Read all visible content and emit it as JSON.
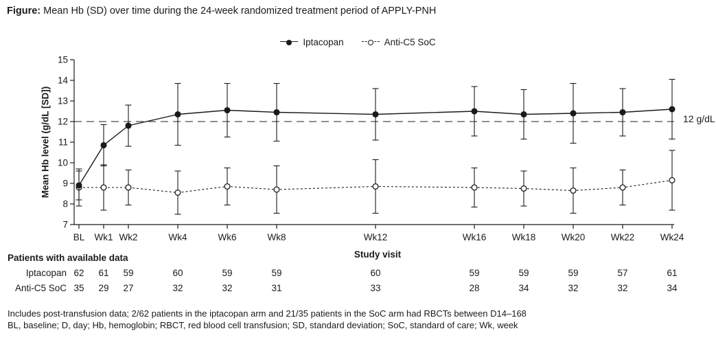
{
  "figure": {
    "title_label": "Figure:",
    "title_text": "Mean Hb (SD) over time during the 24-week randomized treatment period of APPLY-PNH"
  },
  "chart_data": {
    "type": "line",
    "x_categories": [
      "BL",
      "Wk1",
      "Wk2",
      "Wk4",
      "Wk6",
      "Wk8",
      "Wk12",
      "Wk16",
      "Wk18",
      "Wk20",
      "Wk22",
      "Wk24"
    ],
    "x_weeks": [
      0,
      1,
      2,
      4,
      6,
      8,
      12,
      16,
      18,
      20,
      22,
      24
    ],
    "xlabel": "Study visit",
    "ylabel": "Mean Hb level (g/dL [SD])",
    "ylim": [
      7,
      15
    ],
    "y_ticks": [
      7,
      8,
      9,
      10,
      11,
      12,
      13,
      14,
      15
    ],
    "grid": false,
    "legend_position": "top-center",
    "error_bars": "SD",
    "threshold": {
      "value": 12,
      "label": "12 g/dL"
    },
    "series": [
      {
        "name": "Iptacopan",
        "marker": "filled-circle",
        "line_style": "solid",
        "means": [
          8.9,
          10.85,
          11.8,
          12.35,
          12.55,
          12.45,
          12.35,
          12.5,
          12.35,
          12.4,
          12.45,
          12.6
        ],
        "sd": [
          0.7,
          1.0,
          1.0,
          1.5,
          1.3,
          1.4,
          1.25,
          1.2,
          1.2,
          1.45,
          1.15,
          1.45
        ]
      },
      {
        "name": "Anti-C5 SoC",
        "marker": "open-circle",
        "line_style": "dashed",
        "means": [
          8.8,
          8.8,
          8.8,
          8.55,
          8.85,
          8.7,
          8.85,
          8.8,
          8.75,
          8.65,
          8.8,
          9.15
        ],
        "sd": [
          0.9,
          1.1,
          0.85,
          1.05,
          0.9,
          1.15,
          1.3,
          0.95,
          0.85,
          1.1,
          0.85,
          1.45
        ]
      }
    ]
  },
  "patients_table": {
    "title": "Patients with available data",
    "rows": [
      {
        "label": "Iptacopan",
        "values": [
          "62",
          "61",
          "59",
          "60",
          "59",
          "59",
          "60",
          "59",
          "59",
          "59",
          "57",
          "61"
        ]
      },
      {
        "label": "Anti-C5 SoC",
        "values": [
          "35",
          "29",
          "27",
          "32",
          "32",
          "31",
          "33",
          "28",
          "34",
          "32",
          "32",
          "34"
        ]
      }
    ]
  },
  "footnotes": [
    "Includes post-transfusion data; 2/62 patients in the iptacopan arm and 21/35 patients in the SoC arm had RBCTs between D14–168",
    "BL, baseline; D, day; Hb, hemoglobin; RBCT, red blood cell transfusion; SD, standard deviation; SoC, standard of care; Wk, week"
  ],
  "colors": {
    "ink": "#1a1a1a",
    "axis": "#1a1a1a",
    "threshold": "#4a4a4a",
    "background": "#ffffff"
  }
}
